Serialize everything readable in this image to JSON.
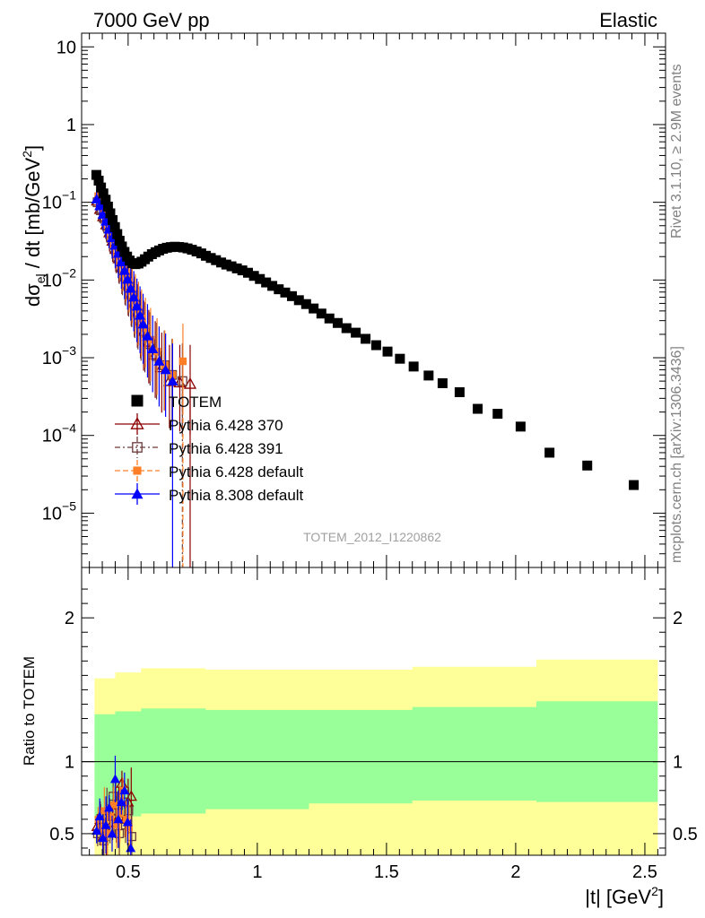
{
  "header": {
    "left": "7000 GeV pp",
    "right": "Elastic"
  },
  "side": {
    "top": "Rivet 3.1.10, ≥ 2.9M events",
    "bottom": "mcplots.cern.ch [arXiv:1306.3436]"
  },
  "analysis_label": "TOTEM_2012_I1220862",
  "chart_data": [
    {
      "type": "scatter",
      "yscale": "log",
      "ylabel_main": "dσ",
      "ylabel_sub": "el",
      "ylabel_rest": " / dt [mb/GeV",
      "ylabel_sup": "2",
      "ylabel_end": "]",
      "xlim": [
        0.32,
        2.58
      ],
      "ylim": [
        2e-06,
        15
      ],
      "y_ticks": [
        {
          "value": 10,
          "label": "10"
        },
        {
          "value": 1,
          "label": "1"
        },
        {
          "value": 0.1,
          "label": "10",
          "exp": "−1"
        },
        {
          "value": 0.01,
          "label": "10",
          "exp": "−2"
        },
        {
          "value": 0.001,
          "label": "10",
          "exp": "−3"
        },
        {
          "value": 0.0001,
          "label": "10",
          "exp": "−4"
        },
        {
          "value": 1e-05,
          "label": "10",
          "exp": "−5"
        }
      ],
      "series": [
        {
          "name": "TOTEM",
          "color": "#000000",
          "marker": "square-filled",
          "x": [
            0.377,
            0.386,
            0.395,
            0.404,
            0.413,
            0.422,
            0.431,
            0.44,
            0.449,
            0.458,
            0.467,
            0.476,
            0.486,
            0.496,
            0.506,
            0.517,
            0.528,
            0.54,
            0.552,
            0.565,
            0.578,
            0.592,
            0.606,
            0.62,
            0.635,
            0.65,
            0.665,
            0.681,
            0.697,
            0.713,
            0.73,
            0.747,
            0.765,
            0.783,
            0.801,
            0.82,
            0.84,
            0.86,
            0.88,
            0.9,
            0.921,
            0.942,
            0.964,
            0.987,
            1.01,
            1.034,
            1.058,
            1.083,
            1.108,
            1.134,
            1.161,
            1.189,
            1.218,
            1.248,
            1.279,
            1.311,
            1.345,
            1.381,
            1.419,
            1.46,
            1.504,
            1.552,
            1.605,
            1.663,
            1.717,
            1.783,
            1.853,
            1.93,
            2.019,
            2.131,
            2.277,
            2.457
          ],
          "y": [
            0.225,
            0.19,
            0.155,
            0.13,
            0.108,
            0.088,
            0.072,
            0.059,
            0.048,
            0.039,
            0.032,
            0.027,
            0.023,
            0.02,
            0.0178,
            0.0165,
            0.016,
            0.0163,
            0.0172,
            0.0185,
            0.02,
            0.0215,
            0.0228,
            0.024,
            0.0252,
            0.026,
            0.0265,
            0.0268,
            0.0266,
            0.0262,
            0.0255,
            0.0245,
            0.0233,
            0.022,
            0.0205,
            0.0192,
            0.018,
            0.0168,
            0.0158,
            0.015,
            0.0141,
            0.0133,
            0.0124,
            0.0113,
            0.0103,
            0.0093,
            0.0084,
            0.0076,
            0.0069,
            0.0062,
            0.0055,
            0.0049,
            0.0043,
            0.0037,
            0.0032,
            0.0028,
            0.0024,
            0.0021,
            0.00175,
            0.00145,
            0.0012,
            0.00097,
            0.00077,
            0.00059,
            0.00047,
            0.00036,
            0.00022,
            0.00019,
            0.00013,
            6e-05,
            4.1e-05,
            2.3e-05
          ]
        },
        {
          "name": "Pythia 6.428 370",
          "color": "#8b0000",
          "marker": "triangle-open",
          "x": [
            0.38,
            0.392,
            0.404,
            0.416,
            0.428,
            0.44,
            0.452,
            0.464,
            0.476,
            0.488,
            0.5,
            0.512,
            0.524,
            0.536,
            0.548,
            0.56,
            0.58,
            0.605,
            0.63,
            0.66,
            0.7,
            0.74
          ],
          "y": [
            0.105,
            0.082,
            0.066,
            0.052,
            0.041,
            0.032,
            0.025,
            0.019,
            0.0145,
            0.0112,
            0.0086,
            0.0066,
            0.0051,
            0.0039,
            0.003,
            0.0022,
            0.0016,
            0.0011,
            0.00075,
            0.0005,
            0.00048,
            0.00046
          ]
        },
        {
          "name": "Pythia 6.428 391",
          "color": "#6b3a3a",
          "marker": "square-open",
          "x": [
            0.382,
            0.394,
            0.406,
            0.418,
            0.43,
            0.442,
            0.454,
            0.466,
            0.478,
            0.49,
            0.502,
            0.514,
            0.526,
            0.538,
            0.55,
            0.565,
            0.585,
            0.61,
            0.64,
            0.67,
            0.71
          ],
          "y": [
            0.1,
            0.079,
            0.063,
            0.05,
            0.039,
            0.031,
            0.024,
            0.0185,
            0.014,
            0.0108,
            0.0083,
            0.0064,
            0.0049,
            0.0037,
            0.0028,
            0.0021,
            0.0015,
            0.00105,
            0.0008,
            0.0006,
            0.0005
          ]
        },
        {
          "name": "Pythia 6.428 default",
          "color": "#ff7f27",
          "marker": "square-filled-small",
          "x": [
            0.384,
            0.396,
            0.408,
            0.42,
            0.432,
            0.444,
            0.456,
            0.468,
            0.48,
            0.492,
            0.504,
            0.516,
            0.528,
            0.54,
            0.552,
            0.567,
            0.587,
            0.612,
            0.642,
            0.672,
            0.712
          ],
          "y": [
            0.12,
            0.092,
            0.072,
            0.056,
            0.044,
            0.034,
            0.027,
            0.0205,
            0.0158,
            0.0122,
            0.0094,
            0.0072,
            0.0055,
            0.0042,
            0.0032,
            0.0024,
            0.0017,
            0.0012,
            0.0008,
            0.0006,
            0.0009
          ]
        },
        {
          "name": "Pythia 8.308 default",
          "color": "#0000ff",
          "marker": "triangle-filled",
          "x": [
            0.378,
            0.39,
            0.402,
            0.414,
            0.426,
            0.438,
            0.45,
            0.462,
            0.474,
            0.486,
            0.498,
            0.51,
            0.522,
            0.534,
            0.546,
            0.558,
            0.575,
            0.595,
            0.62,
            0.645,
            0.672
          ],
          "y": [
            0.11,
            0.09,
            0.07,
            0.057,
            0.045,
            0.035,
            0.028,
            0.022,
            0.017,
            0.0132,
            0.0102,
            0.0078,
            0.006,
            0.0046,
            0.0035,
            0.0027,
            0.0019,
            0.0013,
            0.0009,
            0.0007,
            0.0005
          ]
        }
      ]
    },
    {
      "type": "area",
      "ylabel": "Ratio to TOTEM",
      "xlabel_main": "|t| [GeV",
      "xlabel_sup": "2",
      "xlabel_end": "]",
      "xlim": [
        0.32,
        2.58
      ],
      "ylim": [
        0.35,
        2.35
      ],
      "x_ticks": [
        0.5,
        1,
        1.5,
        2,
        2.5
      ],
      "x_tick_labels": [
        "0.5",
        "1",
        "1.5",
        "2",
        "2.5"
      ],
      "y_ticks": [
        0.5,
        1,
        2
      ],
      "y_tick_labels": [
        "0.5",
        "1",
        "2"
      ],
      "band_x": [
        0.37,
        0.45,
        0.55,
        0.8,
        1.2,
        1.6,
        2.08,
        2.55
      ],
      "outer_band_upper": [
        1.58,
        1.62,
        1.65,
        1.64,
        1.64,
        1.66,
        1.71,
        1.77
      ],
      "outer_band_lower": [
        0.35,
        0.35,
        0.35,
        0.35,
        0.35,
        0.35,
        0.35,
        0.35
      ],
      "inner_band_upper": [
        1.33,
        1.35,
        1.37,
        1.36,
        1.36,
        1.38,
        1.42,
        1.45
      ],
      "inner_band_lower": [
        0.6,
        0.62,
        0.64,
        0.67,
        0.71,
        0.73,
        0.72,
        0.72
      ],
      "outer_band_color": "#ffff99",
      "inner_band_color": "#99ff99",
      "series": [
        {
          "color": "#8b0000",
          "marker": "triangle-open",
          "x": [
            0.38,
            0.392,
            0.404,
            0.416,
            0.428,
            0.44,
            0.452,
            0.464,
            0.476,
            0.488,
            0.5,
            0.512
          ],
          "y": [
            0.55,
            0.6,
            0.48,
            0.52,
            0.66,
            0.58,
            0.7,
            0.62,
            0.85,
            0.6,
            0.72,
            0.76
          ]
        },
        {
          "color": "#6b3a3a",
          "marker": "square-open",
          "x": [
            0.382,
            0.394,
            0.406,
            0.418,
            0.43,
            0.442,
            0.454,
            0.466,
            0.478,
            0.49,
            0.502,
            0.514
          ],
          "y": [
            0.5,
            0.58,
            0.45,
            0.62,
            0.52,
            0.76,
            0.6,
            0.5,
            0.72,
            0.56,
            0.66,
            0.48
          ]
        },
        {
          "color": "#ff7f27",
          "marker": "square-filled-small",
          "x": [
            0.384,
            0.396,
            0.408,
            0.42,
            0.432,
            0.444,
            0.456,
            0.468,
            0.48,
            0.492,
            0.504
          ],
          "y": [
            0.6,
            0.54,
            0.66,
            0.5,
            0.62,
            0.7,
            0.56,
            0.64,
            0.8,
            0.6,
            0.54
          ]
        },
        {
          "color": "#0000ff",
          "marker": "triangle-filled",
          "x": [
            0.378,
            0.39,
            0.402,
            0.414,
            0.426,
            0.438,
            0.45,
            0.462,
            0.474,
            0.486,
            0.498,
            0.51
          ],
          "y": [
            0.52,
            0.62,
            0.47,
            0.56,
            0.68,
            0.5,
            0.88,
            0.6,
            0.72,
            0.8,
            0.58,
            0.4
          ]
        }
      ]
    }
  ]
}
